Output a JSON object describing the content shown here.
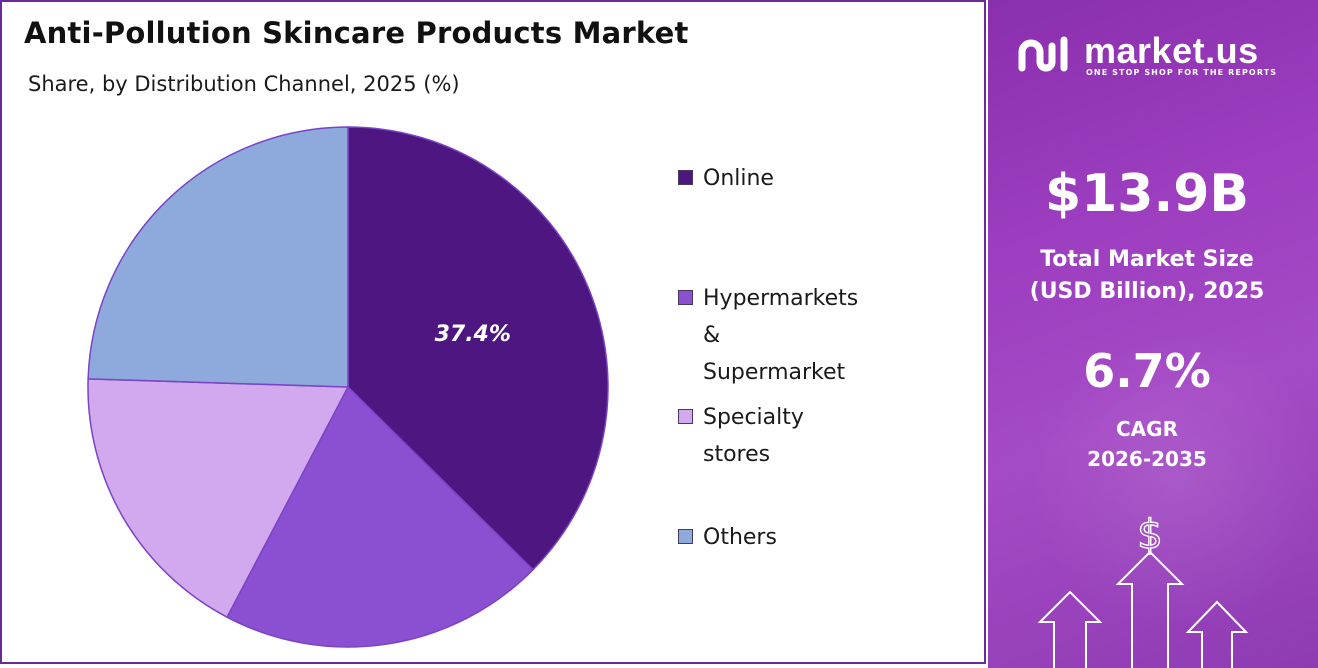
{
  "chart_data": {
    "type": "pie",
    "title": "Anti-Pollution Skincare Products Market",
    "subtitle": "Share, by Distribution Channel, 2025 (%)",
    "categories": [
      "Online",
      "Hypermarkets & Supermarket",
      "Specialty stores",
      "Others"
    ],
    "values": [
      37.4,
      20.3,
      17.8,
      24.5
    ],
    "colors": [
      "#4d1680",
      "#8b50d2",
      "#d2a8ee",
      "#8eaadc"
    ],
    "data_labels": [
      "37.4%",
      "",
      "",
      ""
    ],
    "legend_position": "right"
  },
  "legend": {
    "items": [
      {
        "label": "Online",
        "color": "#4d1680"
      },
      {
        "label": "Hypermarkets &\nSupermarket",
        "color": "#8b50d2"
      },
      {
        "label": "Specialty stores",
        "color": "#d2a8ee"
      },
      {
        "label": "Others",
        "color": "#8eaadc"
      }
    ]
  },
  "side_panel": {
    "brand": "market.us",
    "tagline": "ONE STOP SHOP FOR THE REPORTS",
    "market_size_value": "$13.9B",
    "market_size_label": "Total Market Size\n(USD Billion), 2025",
    "cagr_value": "6.7%",
    "cagr_label": "CAGR",
    "cagr_period": "2026-2035",
    "currency_symbol": "$",
    "colors": {
      "panel": "#9a3dbd"
    }
  }
}
